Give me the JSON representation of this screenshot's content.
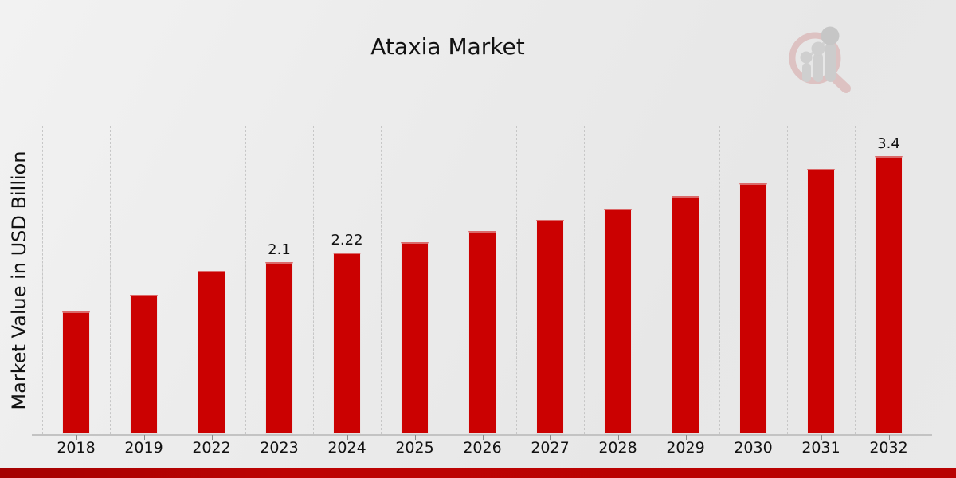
{
  "page": {
    "title": "Ataxia Market"
  },
  "chart_data": {
    "type": "bar",
    "title": "Ataxia Market",
    "xlabel": "",
    "ylabel": "Market Value in USD Billion",
    "categories": [
      "2018",
      "2019",
      "2022",
      "2023",
      "2024",
      "2025",
      "2026",
      "2027",
      "2028",
      "2029",
      "2030",
      "2031",
      "2032"
    ],
    "values": [
      1.5,
      1.7,
      2.0,
      2.1,
      2.22,
      2.35,
      2.48,
      2.62,
      2.76,
      2.91,
      3.07,
      3.24,
      3.4
    ],
    "bar_labels": [
      "",
      "",
      "",
      "2.1",
      "2.22",
      "",
      "",
      "",
      "",
      "",
      "",
      "",
      "3.4"
    ],
    "ylim": [
      0,
      3.77
    ],
    "grid": "vertical-dashed",
    "legend": "none",
    "bar_color": "#cb0101",
    "grid_color": "#c6c6c6",
    "axis_color": "#c3c3c3",
    "footer_accent_color": "#b30202",
    "watermark_icon": "magnifier-bar-chart-logo"
  }
}
